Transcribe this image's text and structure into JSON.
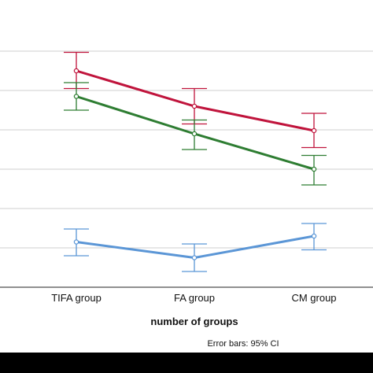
{
  "chart_data": {
    "type": "line",
    "categories": [
      "TIFA  group",
      "FA group",
      "CM group"
    ],
    "xlabel": "number of groups",
    "ylabel": "",
    "ylim": [
      0,
      7
    ],
    "grid": true,
    "note": "Error bars: 95% CI",
    "series": [
      {
        "color": "#c0143c",
        "values": [
          5.5,
          4.6,
          3.98
        ],
        "ci_low": [
          5.05,
          4.15,
          3.55
        ],
        "ci_high": [
          5.97,
          5.05,
          4.42
        ]
      },
      {
        "color": "#2e7d32",
        "values": [
          4.85,
          3.9,
          3.0
        ],
        "ci_low": [
          4.5,
          3.5,
          2.6
        ],
        "ci_high": [
          5.2,
          4.25,
          3.35
        ]
      },
      {
        "color": "#5b96d6",
        "values": [
          1.15,
          0.75,
          1.3
        ],
        "ci_low": [
          0.8,
          0.4,
          0.95
        ],
        "ci_high": [
          1.48,
          1.1,
          1.62
        ]
      }
    ]
  }
}
